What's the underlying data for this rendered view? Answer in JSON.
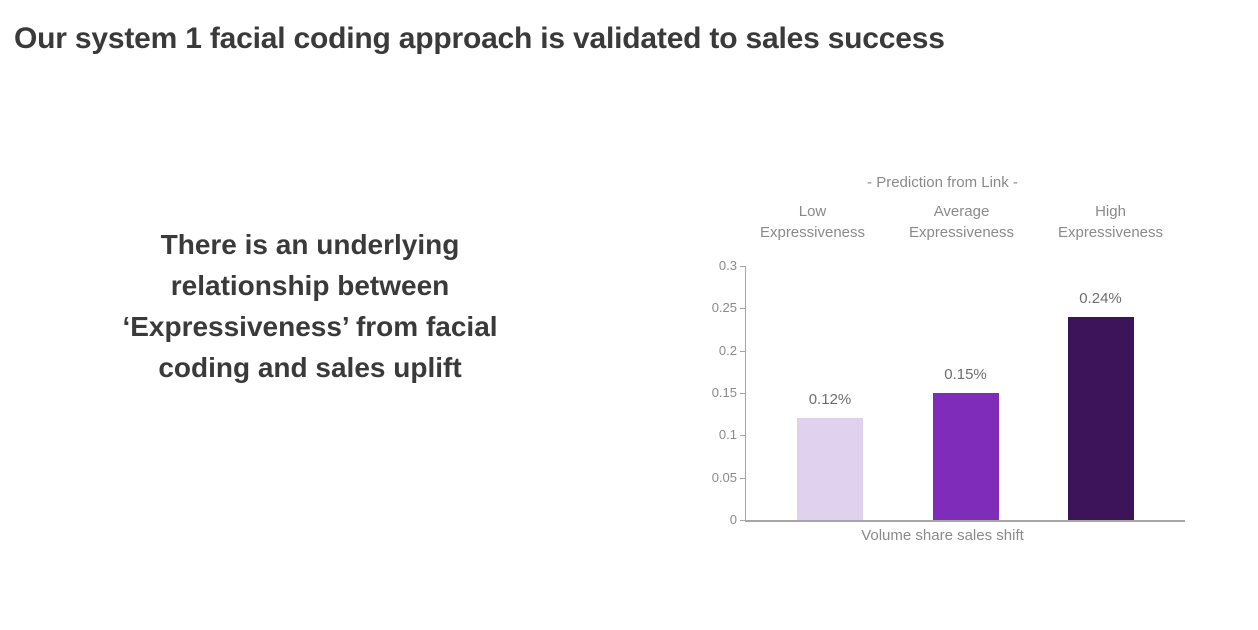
{
  "slide": {
    "title": "Our system 1 facial coding approach is validated to sales success",
    "statement_lines": [
      "There is an underlying",
      "relationship between",
      "‘Expressiveness’ from facial",
      "coding and sales uplift"
    ]
  },
  "chart_data": {
    "type": "bar",
    "title": "- Prediction from Link -",
    "categories": [
      "Low Expressiveness",
      "Average Expressiveness",
      "High Expressiveness"
    ],
    "values": [
      0.12,
      0.15,
      0.24
    ],
    "value_labels": [
      "0.12%",
      "0.15%",
      "0.24%"
    ],
    "bar_colors": [
      "#e0d1ee",
      "#7f2cbb",
      "#3d1459"
    ],
    "xlabel": "Volume share sales shift",
    "ylabel": "",
    "ylim": [
      0,
      0.3
    ],
    "yticks": [
      0,
      0.05,
      0.1,
      0.15,
      0.2,
      0.25,
      0.3
    ],
    "ytick_labels": [
      "0",
      "0.05",
      "0.1",
      "0.15",
      "0.2",
      "0.25",
      "0.3"
    ],
    "grid": false,
    "legend_position": "none",
    "axis_color": "#a6a6a6",
    "label_color": "#8a8a8a"
  }
}
